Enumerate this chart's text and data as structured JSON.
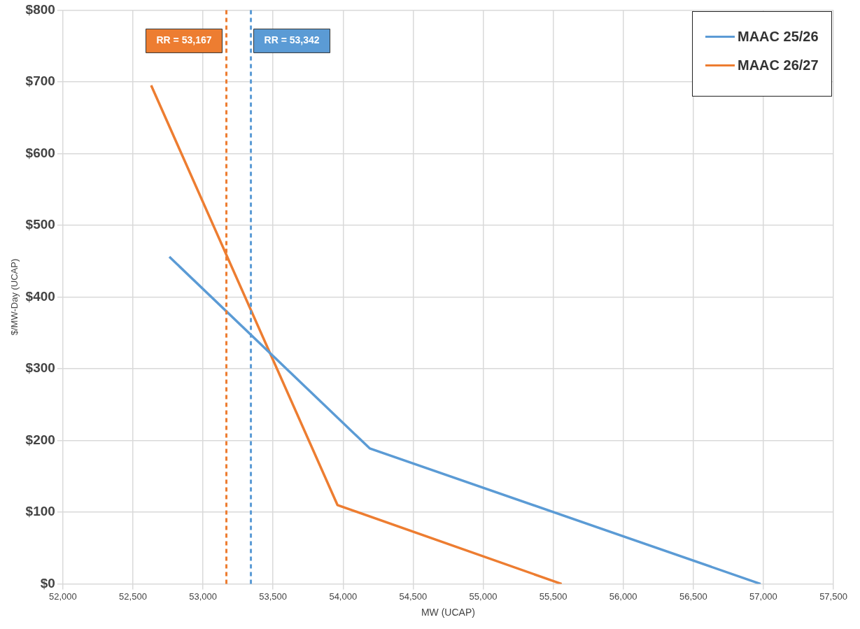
{
  "chart_data": {
    "type": "line",
    "xlabel": "MW (UCAP)",
    "ylabel": "$/MW-Day (UCAP)",
    "xlim": [
      52000,
      57500
    ],
    "xticks": [
      {
        "value": 52000,
        "label": "52,000"
      },
      {
        "value": 52500,
        "label": "52,500"
      },
      {
        "value": 53000,
        "label": "53,000"
      },
      {
        "value": 53500,
        "label": "53,500"
      },
      {
        "value": 54000,
        "label": "54,000"
      },
      {
        "value": 54500,
        "label": "54,500"
      },
      {
        "value": 55000,
        "label": "55,000"
      },
      {
        "value": 55500,
        "label": "55,500"
      },
      {
        "value": 56000,
        "label": "56,000"
      },
      {
        "value": 56500,
        "label": "56,500"
      },
      {
        "value": 57000,
        "label": "57,000"
      },
      {
        "value": 57500,
        "label": "57,500"
      }
    ],
    "ylim": [
      0,
      800
    ],
    "yticks": [
      {
        "value": 0,
        "label": "$0"
      },
      {
        "value": 100,
        "label": "$100"
      },
      {
        "value": 200,
        "label": "$200"
      },
      {
        "value": 300,
        "label": "$300"
      },
      {
        "value": 400,
        "label": "$400"
      },
      {
        "value": 500,
        "label": "$500"
      },
      {
        "value": 600,
        "label": "$600"
      },
      {
        "value": 700,
        "label": "$700"
      },
      {
        "value": 800,
        "label": "$800"
      }
    ],
    "series": [
      {
        "name": "MAAC 25/26",
        "color": "#5b9bd5",
        "x": [
          52760,
          54190,
          56980
        ],
        "values": [
          456,
          189,
          0
        ]
      },
      {
        "name": "MAAC 26/27",
        "color": "#ed7d31",
        "x": [
          52630,
          53960,
          55560
        ],
        "values": [
          695,
          110,
          0
        ]
      }
    ],
    "ref_lines": [
      {
        "axis": "x",
        "value": 53167,
        "label": "RR = 53,167",
        "color": "#ed7d31",
        "line_style": "dashed"
      },
      {
        "axis": "x",
        "value": 53342,
        "label": "RR = 53,342",
        "color": "#5b9bd5",
        "line_style": "dashed"
      }
    ],
    "grid": true,
    "legend": "top right",
    "marker": "none",
    "line_style": "solid"
  }
}
